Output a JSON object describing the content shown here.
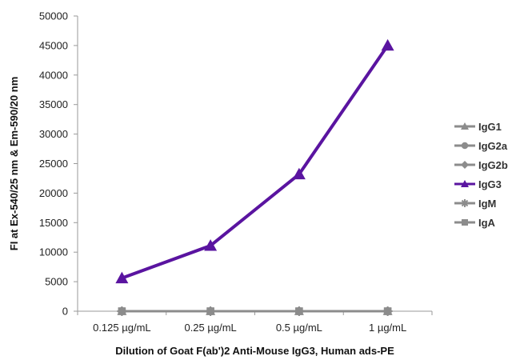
{
  "chart_data": {
    "type": "line",
    "title": "",
    "xlabel": "Dilution of Goat F(ab')2 Anti-Mouse IgG3, Human ads-PE",
    "ylabel": "FI at Ex-540/25  nm & Em-590/20  nm",
    "categories": [
      "0.125 µg/mL",
      "0.25 µg/mL",
      "0.5 µg/mL",
      "1 µg/mL"
    ],
    "ylim": [
      0,
      50000
    ],
    "yticks": [
      0,
      5000,
      10000,
      15000,
      20000,
      25000,
      30000,
      35000,
      40000,
      45000,
      50000
    ],
    "grid": false,
    "legend_position": "right",
    "series": [
      {
        "name": "IgG1",
        "values": [
          0,
          0,
          0,
          0
        ],
        "color": "#8c8c8c",
        "marker": "triangle"
      },
      {
        "name": "IgG2a",
        "values": [
          0,
          0,
          0,
          0
        ],
        "color": "#8c8c8c",
        "marker": "circle"
      },
      {
        "name": "IgG2b",
        "values": [
          0,
          0,
          0,
          0
        ],
        "color": "#8c8c8c",
        "marker": "diamond"
      },
      {
        "name": "IgG3",
        "values": [
          5600,
          11100,
          23200,
          45000
        ],
        "color": "#5a14a0",
        "marker": "triangle"
      },
      {
        "name": "IgM",
        "values": [
          0,
          0,
          0,
          0
        ],
        "color": "#8c8c8c",
        "marker": "asterisk"
      },
      {
        "name": "IgA",
        "values": [
          0,
          0,
          0,
          0
        ],
        "color": "#8c8c8c",
        "marker": "square"
      }
    ]
  }
}
